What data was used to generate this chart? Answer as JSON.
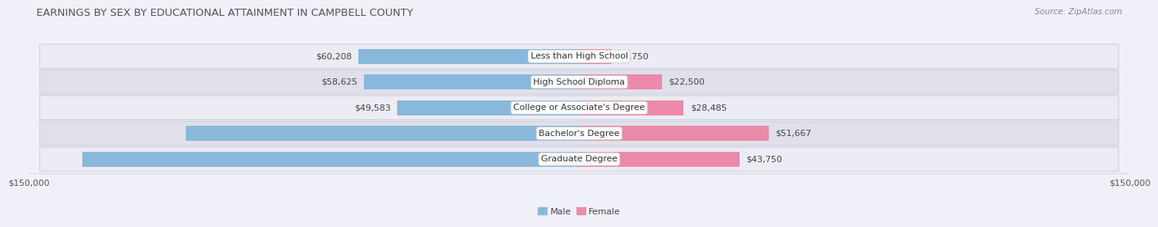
{
  "title": "EARNINGS BY SEX BY EDUCATIONAL ATTAINMENT IN CAMPBELL COUNTY",
  "source": "Source: ZipAtlas.com",
  "categories": [
    "Less than High School",
    "High School Diploma",
    "College or Associate's Degree",
    "Bachelor's Degree",
    "Graduate Degree"
  ],
  "male_values": [
    60208,
    58625,
    49583,
    107250,
    135417
  ],
  "female_values": [
    8750,
    22500,
    28485,
    51667,
    43750
  ],
  "male_color": "#8ab8db",
  "female_color": "#eb8aaa",
  "male_label": "Male",
  "female_label": "Female",
  "xlim": 150000,
  "x_tick_label": "$150,000",
  "bar_height": 0.58,
  "row_bg_light": "#ececf4",
  "row_bg_dark": "#e0e0eb",
  "row_border": "#d0d0df",
  "background_color": "#f0f0f8",
  "title_fontsize": 9.5,
  "label_fontsize": 8.0,
  "value_fontsize": 8.0,
  "source_fontsize": 7.5,
  "inner_value_threshold": 0.45
}
